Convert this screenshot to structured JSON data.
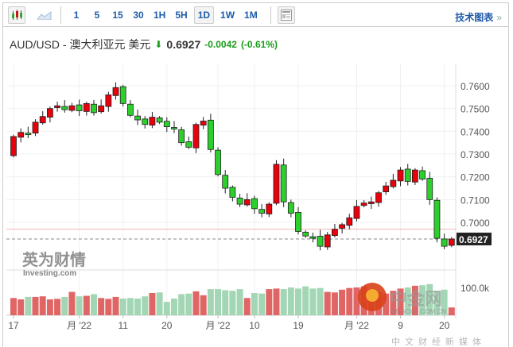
{
  "toolbar": {
    "intervals": [
      "1",
      "5",
      "15",
      "30",
      "1H",
      "5H",
      "1D",
      "1W",
      "1M"
    ],
    "active_interval": "1D",
    "tech_chart_label": "技术图表",
    "tech_chart_arrow": "»"
  },
  "header": {
    "symbol": "AUD/USD - 澳大利亚元 美元",
    "last": "0.6927",
    "change": "-0.0042",
    "change_pct": "(-0.61%)"
  },
  "colors": {
    "up": "#e8000b",
    "down": "#2dcf2d",
    "vol_up": "#e06666",
    "vol_down": "#a3d6b5",
    "change": "#1a9e1a"
  },
  "chart_data": {
    "type": "candlestick",
    "y_ticks": [
      "0.7600",
      "0.7500",
      "0.7400",
      "0.7300",
      "0.7200",
      "0.7100",
      "0.7000"
    ],
    "y_ticks_values": [
      0.76,
      0.75,
      0.74,
      0.73,
      0.72,
      0.71,
      0.7
    ],
    "last_price_label": "0.6927",
    "last_price": 0.6927,
    "ref_line": 0.697,
    "x_labels": [
      "17",
      "月 '22",
      "11",
      "20",
      "月 '22",
      "10",
      "19",
      "月 '22",
      "9",
      "20"
    ],
    "x_label_index": [
      0,
      9,
      15,
      21,
      28,
      33,
      39,
      47,
      53,
      59
    ],
    "volume_tick": "100.0k",
    "volume_tick_value": 100000,
    "closes": [
      0.7377,
      0.7395,
      0.7388,
      0.744,
      0.7465,
      0.75,
      0.7512,
      0.7495,
      0.7512,
      0.749,
      0.7522,
      0.7482,
      0.7512,
      0.756,
      0.7592,
      0.7522,
      0.747,
      0.745,
      0.743,
      0.7462,
      0.744,
      0.742,
      0.741,
      0.735,
      0.733,
      0.743,
      0.7445,
      0.732,
      0.721,
      0.715,
      0.711,
      0.708,
      0.71,
      0.706,
      0.704,
      0.708,
      0.7255,
      0.709,
      0.704,
      0.696,
      0.694,
      0.6935,
      0.6895,
      0.6945,
      0.697,
      0.699,
      0.702,
      0.707,
      0.7085,
      0.709,
      0.713,
      0.716,
      0.7185,
      0.723,
      0.718,
      0.723,
      0.719,
      0.71,
      0.693,
      0.6895,
      0.6927
    ],
    "open_first": 0.7293,
    "volumes": [
      62,
      57,
      66,
      66,
      68,
      57,
      59,
      66,
      84,
      68,
      70,
      76,
      62,
      59,
      66,
      60,
      62,
      60,
      68,
      80,
      82,
      48,
      60,
      76,
      78,
      86,
      72,
      94,
      94,
      90,
      88,
      94,
      62,
      80,
      78,
      94,
      96,
      94,
      100,
      96,
      104,
      96,
      98,
      84,
      82,
      92,
      98,
      100,
      104,
      94,
      82,
      78,
      88,
      96,
      100,
      106,
      108,
      112,
      88,
      92,
      28
    ]
  }
}
